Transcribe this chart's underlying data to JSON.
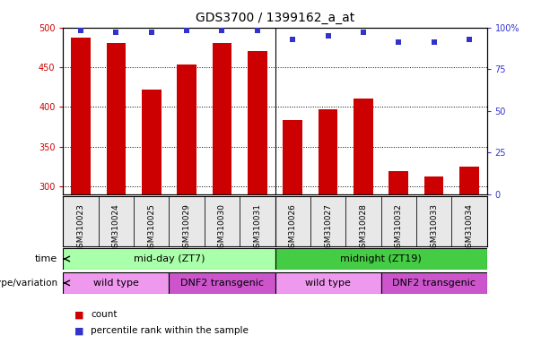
{
  "title": "GDS3700 / 1399162_a_at",
  "samples": [
    "GSM310023",
    "GSM310024",
    "GSM310025",
    "GSM310029",
    "GSM310030",
    "GSM310031",
    "GSM310026",
    "GSM310027",
    "GSM310028",
    "GSM310032",
    "GSM310033",
    "GSM310034"
  ],
  "counts": [
    487,
    480,
    422,
    454,
    481,
    470,
    383,
    397,
    411,
    319,
    313,
    325
  ],
  "percentiles": [
    98,
    97,
    97,
    98,
    98,
    98,
    93,
    95,
    97,
    91,
    91,
    93
  ],
  "ylim_left": [
    290,
    500
  ],
  "ylim_right": [
    0,
    100
  ],
  "yticks_left": [
    300,
    350,
    400,
    450,
    500
  ],
  "yticks_right": [
    0,
    25,
    50,
    75,
    100
  ],
  "bar_color": "#cc0000",
  "dot_color": "#3333cc",
  "background_color": "#ffffff",
  "time_groups": [
    {
      "label": "mid-day (ZT7)",
      "start": 0,
      "end": 5,
      "color": "#aaffaa"
    },
    {
      "label": "midnight (ZT19)",
      "start": 6,
      "end": 11,
      "color": "#44cc44"
    }
  ],
  "genotype_groups": [
    {
      "label": "wild type",
      "start": 0,
      "end": 2,
      "color": "#ee99ee"
    },
    {
      "label": "DNF2 transgenic",
      "start": 3,
      "end": 5,
      "color": "#cc55cc"
    },
    {
      "label": "wild type",
      "start": 6,
      "end": 8,
      "color": "#ee99ee"
    },
    {
      "label": "DNF2 transgenic",
      "start": 9,
      "end": 11,
      "color": "#cc55cc"
    }
  ],
  "legend_items": [
    {
      "label": "count",
      "color": "#cc0000"
    },
    {
      "label": "percentile rank within the sample",
      "color": "#3333cc"
    }
  ],
  "xlabel_time": "time",
  "xlabel_genotype": "genotype/variation",
  "title_fontsize": 10,
  "tick_fontsize": 7,
  "label_fontsize": 8,
  "sample_fontsize": 6.5
}
